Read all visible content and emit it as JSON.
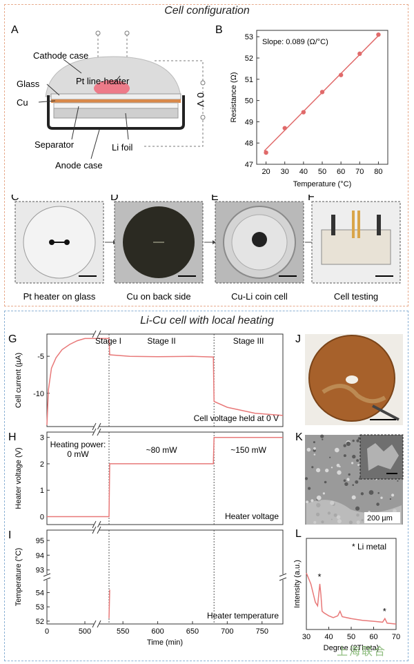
{
  "sections": {
    "top_title": "Cell configuration",
    "bottom_title": "Li-Cu cell with local heating"
  },
  "panelA": {
    "letter": "A",
    "labels": {
      "cathode_case": "Cathode case",
      "pt_heater": "Pt line-heater",
      "glass": "Glass",
      "cu": "Cu",
      "separator": "Separator",
      "li_foil": "Li foil",
      "anode_case": "Anode case",
      "voltage": "0 V"
    }
  },
  "panelB": {
    "letter": "B",
    "annotation": "Slope: 0.089 (Ω/°C)"
  },
  "photos": [
    {
      "letter": "C",
      "caption": "Pt heater on glass"
    },
    {
      "letter": "D",
      "caption": "Cu on back side"
    },
    {
      "letter": "E",
      "caption": "Cu-Li coin cell"
    },
    {
      "letter": "F",
      "caption": "Cell testing"
    }
  ],
  "panelG": {
    "letter": "G",
    "stages": [
      "Stage I",
      "Stage II",
      "Stage III"
    ],
    "note": "Cell voltage held at 0 V"
  },
  "panelH": {
    "letter": "H",
    "powers": [
      "Heating power:",
      "0 mW",
      "~80 mW",
      "~150 mW"
    ],
    "note": "Heater voltage"
  },
  "panelI": {
    "letter": "I",
    "note": "Heater temperature"
  },
  "panelJ": {
    "letter": "J"
  },
  "panelK": {
    "letter": "K",
    "scalebar": "200 µm"
  },
  "panelL": {
    "letter": "L",
    "legend": "* Li metal"
  },
  "watermark": "上海联合",
  "chart_data": [
    {
      "id": "B",
      "type": "scatter",
      "xlabel": "Temperature (°C)",
      "ylabel": "Resistance (Ω)",
      "xlim": [
        15,
        85
      ],
      "ylim": [
        47,
        53.3
      ],
      "xticks": [
        20,
        30,
        40,
        50,
        60,
        70,
        80
      ],
      "yticks": [
        47,
        48,
        49,
        50,
        51,
        52,
        53
      ],
      "x": [
        20,
        30,
        40,
        50,
        60,
        70,
        80
      ],
      "y": [
        47.55,
        48.7,
        49.45,
        50.4,
        51.2,
        52.2,
        53.1
      ],
      "fit_line": {
        "x": [
          19,
          81
        ],
        "y": [
          47.62,
          53.14
        ]
      },
      "color": "#e06a6a"
    },
    {
      "id": "G",
      "type": "line",
      "xlabel": "",
      "ylabel": "Cell current (µA)",
      "ylim": [
        -14.5,
        -2
      ],
      "yticks": [
        -5,
        -10
      ],
      "color": "#e87878",
      "series": [
        {
          "x": [
            0,
            20,
            60,
            120,
            200,
            300,
            400,
            500,
            530,
            531,
            560,
            600,
            650,
            680,
            681,
            700,
            740,
            780
          ],
          "y": [
            -14.3,
            -9.5,
            -6.6,
            -5.2,
            -4.1,
            -3.4,
            -2.9,
            -2.6,
            -2.6,
            -4.8,
            -5.0,
            -5.05,
            -5.0,
            -5.1,
            -11.1,
            -11.9,
            -12.7,
            -13.0
          ]
        }
      ]
    },
    {
      "id": "H",
      "type": "line",
      "xlabel": "",
      "ylabel": "Heater voltage (V)",
      "ylim": [
        -0.3,
        3.2
      ],
      "yticks": [
        0,
        1,
        2,
        3
      ],
      "color": "#e87878",
      "series": [
        {
          "x": [
            0,
            530,
            531,
            680,
            681,
            780
          ],
          "y": [
            0,
            0,
            2,
            2,
            3,
            3
          ]
        }
      ]
    },
    {
      "id": "I",
      "type": "line",
      "xlabel": "Time (min)",
      "ylabel": "Temperature (°C)",
      "xticks": [
        0,
        500,
        550,
        600,
        650,
        700,
        750
      ],
      "yticks_lower": [
        52,
        53,
        54
      ],
      "yticks_upper": [
        93,
        94,
        95
      ],
      "axis_break_y": [
        54.8,
        92.8
      ],
      "axis_break_x": [
        500,
        530
      ],
      "color": "#e87878",
      "series": [
        {
          "x": [
            530,
            531,
            560,
            600,
            650,
            680,
            681,
            700,
            720,
            740,
            760,
            780
          ],
          "y": [
            52.2,
            54.2,
            54.3,
            54.25,
            54.2,
            54.1,
            94.8,
            95.1,
            94.8,
            94.3,
            93.8,
            93.2
          ]
        }
      ]
    },
    {
      "id": "L",
      "type": "line",
      "xlabel": "Degree (2Theta)",
      "ylabel": "Intensity (a.u.)",
      "xlim": [
        30,
        70
      ],
      "xticks": [
        30,
        40,
        50,
        60,
        70
      ],
      "color": "#e87878",
      "series": [
        {
          "x": [
            30,
            32,
            34,
            35,
            36,
            36.5,
            37,
            38,
            40,
            42,
            44,
            45,
            46,
            50,
            55,
            60,
            64,
            65,
            66,
            70
          ],
          "y": [
            0.62,
            0.5,
            0.3,
            0.26,
            0.5,
            0.38,
            0.2,
            0.18,
            0.15,
            0.13,
            0.15,
            0.2,
            0.14,
            0.12,
            0.1,
            0.09,
            0.08,
            0.12,
            0.07,
            0.06
          ]
        }
      ]
    }
  ]
}
